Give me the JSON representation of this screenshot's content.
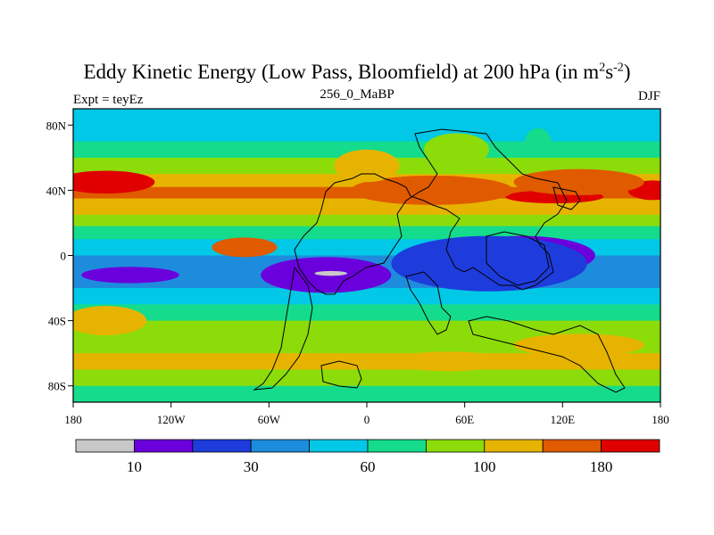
{
  "title_main": "Eddy Kinetic Energy (Low Pass, Bloomfield) at 200 hPa (in m",
  "title_sup1": "2",
  "title_mid": "s",
  "title_sup2": "-2",
  "title_end": ")",
  "subtitle_left": "Expt = teyEz",
  "subtitle_center": "256_0_MaBP",
  "subtitle_right": "DJF",
  "colors": {
    "levels": [
      "#c8c8c8",
      "#6a00dc",
      "#1e3cdc",
      "#1e8cdc",
      "#00c8e6",
      "#14dc8c",
      "#8cdc0a",
      "#e6b400",
      "#e05a00",
      "#e00000"
    ]
  },
  "chart_data": {
    "type": "filled-contour-map",
    "variable": "Eddy Kinetic Energy",
    "units": "m2 s-2",
    "level_hPa": 200,
    "season": "DJF",
    "x_ticks": [
      "180",
      "120W",
      "60W",
      "0",
      "60E",
      "120E",
      "180"
    ],
    "x_tick_values": [
      -180,
      -120,
      -60,
      0,
      60,
      120,
      180
    ],
    "y_ticks": [
      "80N",
      "40N",
      "0",
      "40S",
      "80S"
    ],
    "y_tick_values": [
      80,
      40,
      0,
      -40,
      -80
    ],
    "xlim": [
      -180,
      180
    ],
    "ylim": [
      -90,
      90
    ],
    "colorbar_bins": 10,
    "colorbar_labels": [
      {
        "label": "10",
        "boundary": 1
      },
      {
        "label": "30",
        "boundary": 3
      },
      {
        "label": "60",
        "boundary": 5
      },
      {
        "label": "100",
        "boundary": 7
      },
      {
        "label": "180",
        "boundary": 9
      }
    ],
    "fields": {
      "note": "approximate zonal band structure: [lat, level index]",
      "bands": [
        [
          90,
          4
        ],
        [
          80,
          4
        ],
        [
          70,
          5
        ],
        [
          60,
          6
        ],
        [
          50,
          7
        ],
        [
          42,
          8
        ],
        [
          35,
          7
        ],
        [
          25,
          6
        ],
        [
          18,
          5
        ],
        [
          10,
          4
        ],
        [
          0,
          3
        ],
        [
          -10,
          3
        ],
        [
          -20,
          4
        ],
        [
          -30,
          5
        ],
        [
          -40,
          6
        ],
        [
          -50,
          6
        ],
        [
          -60,
          7
        ],
        [
          -70,
          6
        ],
        [
          -80,
          5
        ],
        [
          -90,
          4
        ]
      ],
      "blobs": [
        {
          "lon": -160,
          "lat": 45,
          "rlon": 30,
          "rlat": 7,
          "lvl": 9
        },
        {
          "lon": 175,
          "lat": 40,
          "rlon": 15,
          "rlat": 6,
          "lvl": 9
        },
        {
          "lon": 115,
          "lat": 36,
          "rlon": 30,
          "rlat": 4,
          "lvl": 9
        },
        {
          "lon": 40,
          "lat": 40,
          "rlon": 50,
          "rlat": 9,
          "lvl": 8
        },
        {
          "lon": 130,
          "lat": 45,
          "rlon": 40,
          "rlat": 8,
          "lvl": 8
        },
        {
          "lon": 0,
          "lat": 55,
          "rlon": 20,
          "rlat": 10,
          "lvl": 7
        },
        {
          "lon": 55,
          "lat": 65,
          "rlon": 20,
          "rlat": 10,
          "lvl": 6
        },
        {
          "lon": 105,
          "lat": 70,
          "rlon": 8,
          "rlat": 8,
          "lvl": 5
        },
        {
          "lon": -75,
          "lat": 5,
          "rlon": 20,
          "rlat": 6,
          "lvl": 8
        },
        {
          "lon": -25,
          "lat": -12,
          "rlon": 40,
          "rlat": 11,
          "lvl": 1
        },
        {
          "lon": -22,
          "lat": -11,
          "rlon": 10,
          "rlat": 1.5,
          "lvl": 0
        },
        {
          "lon": -145,
          "lat": -12,
          "rlon": 30,
          "rlat": 5,
          "lvl": 1
        },
        {
          "lon": 95,
          "lat": 0,
          "rlon": 45,
          "rlat": 12,
          "lvl": 1
        },
        {
          "lon": 75,
          "lat": -5,
          "rlon": 60,
          "rlat": 17,
          "lvl": 2
        },
        {
          "lon": -160,
          "lat": -40,
          "rlon": 25,
          "rlat": 9,
          "lvl": 7
        },
        {
          "lon": 50,
          "lat": -65,
          "rlon": 35,
          "rlat": 6,
          "lvl": 7
        },
        {
          "lon": 130,
          "lat": -55,
          "rlon": 40,
          "rlat": 7,
          "lvl": 7
        }
      ]
    }
  }
}
